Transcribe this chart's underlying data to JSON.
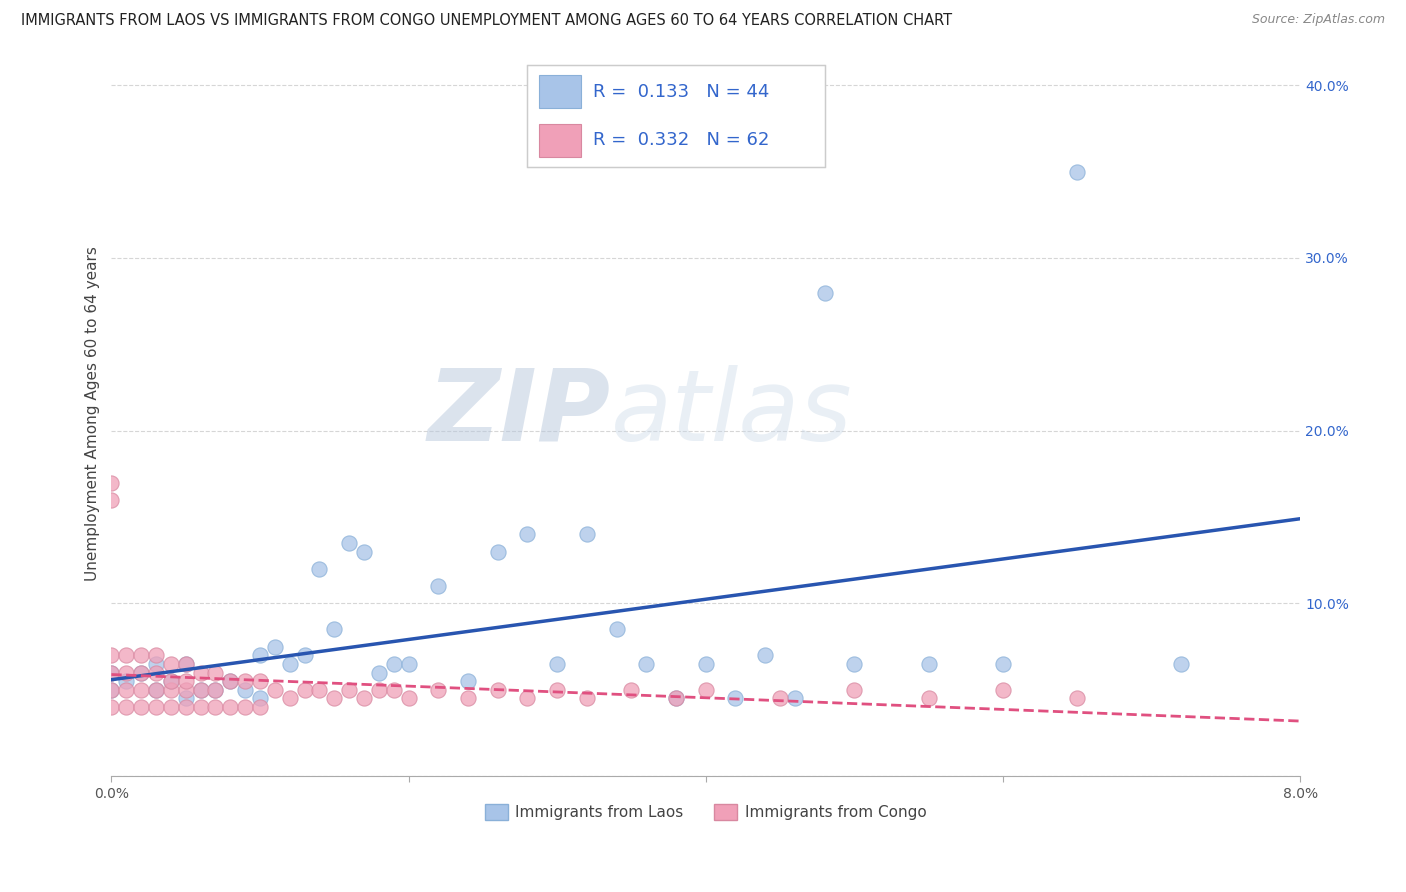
{
  "title": "IMMIGRANTS FROM LAOS VS IMMIGRANTS FROM CONGO UNEMPLOYMENT AMONG AGES 60 TO 64 YEARS CORRELATION CHART",
  "source": "Source: ZipAtlas.com",
  "ylabel": "Unemployment Among Ages 60 to 64 years",
  "xlim": [
    0.0,
    0.08
  ],
  "ylim": [
    0.0,
    0.42
  ],
  "x_ticks": [
    0.0,
    0.02,
    0.04,
    0.06,
    0.08
  ],
  "x_tick_labels": [
    "0.0%",
    "",
    "",
    "",
    "8.0%"
  ],
  "y_ticks": [
    0.0,
    0.1,
    0.2,
    0.3,
    0.4
  ],
  "y_tick_labels_right": [
    "",
    "10.0%",
    "20.0%",
    "30.0%",
    "40.0%"
  ],
  "laos_R": 0.133,
  "laos_N": 44,
  "congo_R": 0.332,
  "congo_N": 62,
  "laos_color": "#a8c4e8",
  "congo_color": "#f0a0b8",
  "laos_line_color": "#2855b0",
  "congo_line_color": "#e05080",
  "watermark_zip": "ZIP",
  "watermark_atlas": "atlas",
  "background_color": "#ffffff",
  "grid_color": "#cccccc",
  "title_fontsize": 10.5,
  "axis_fontsize": 11,
  "tick_fontsize": 10,
  "legend_fontsize": 13,
  "laos_scatter_x": [
    0.0,
    0.0,
    0.001,
    0.002,
    0.003,
    0.003,
    0.004,
    0.005,
    0.005,
    0.006,
    0.007,
    0.008,
    0.009,
    0.01,
    0.01,
    0.011,
    0.012,
    0.013,
    0.014,
    0.015,
    0.016,
    0.017,
    0.018,
    0.019,
    0.02,
    0.022,
    0.024,
    0.026,
    0.028,
    0.03,
    0.032,
    0.034,
    0.036,
    0.038,
    0.04,
    0.042,
    0.044,
    0.046,
    0.048,
    0.05,
    0.055,
    0.06,
    0.065,
    0.072
  ],
  "laos_scatter_y": [
    0.05,
    0.06,
    0.055,
    0.06,
    0.05,
    0.065,
    0.055,
    0.045,
    0.065,
    0.05,
    0.05,
    0.055,
    0.05,
    0.045,
    0.07,
    0.075,
    0.065,
    0.07,
    0.12,
    0.085,
    0.135,
    0.13,
    0.06,
    0.065,
    0.065,
    0.11,
    0.055,
    0.13,
    0.14,
    0.065,
    0.14,
    0.085,
    0.065,
    0.045,
    0.065,
    0.045,
    0.07,
    0.045,
    0.28,
    0.065,
    0.065,
    0.065,
    0.35,
    0.065
  ],
  "congo_scatter_x": [
    0.0,
    0.0,
    0.0,
    0.0,
    0.0,
    0.0,
    0.001,
    0.001,
    0.001,
    0.001,
    0.002,
    0.002,
    0.002,
    0.002,
    0.003,
    0.003,
    0.003,
    0.003,
    0.004,
    0.004,
    0.004,
    0.004,
    0.005,
    0.005,
    0.005,
    0.005,
    0.006,
    0.006,
    0.006,
    0.007,
    0.007,
    0.007,
    0.008,
    0.008,
    0.009,
    0.009,
    0.01,
    0.01,
    0.011,
    0.012,
    0.013,
    0.014,
    0.015,
    0.016,
    0.017,
    0.018,
    0.019,
    0.02,
    0.022,
    0.024,
    0.026,
    0.028,
    0.03,
    0.032,
    0.035,
    0.038,
    0.04,
    0.045,
    0.05,
    0.055,
    0.06,
    0.065
  ],
  "congo_scatter_y": [
    0.04,
    0.05,
    0.06,
    0.07,
    0.16,
    0.17,
    0.04,
    0.05,
    0.06,
    0.07,
    0.04,
    0.05,
    0.06,
    0.07,
    0.04,
    0.05,
    0.06,
    0.07,
    0.04,
    0.05,
    0.055,
    0.065,
    0.04,
    0.05,
    0.055,
    0.065,
    0.04,
    0.05,
    0.06,
    0.04,
    0.05,
    0.06,
    0.04,
    0.055,
    0.04,
    0.055,
    0.04,
    0.055,
    0.05,
    0.045,
    0.05,
    0.05,
    0.045,
    0.05,
    0.045,
    0.05,
    0.05,
    0.045,
    0.05,
    0.045,
    0.05,
    0.045,
    0.05,
    0.045,
    0.05,
    0.045,
    0.05,
    0.045,
    0.05,
    0.045,
    0.05,
    0.045
  ]
}
